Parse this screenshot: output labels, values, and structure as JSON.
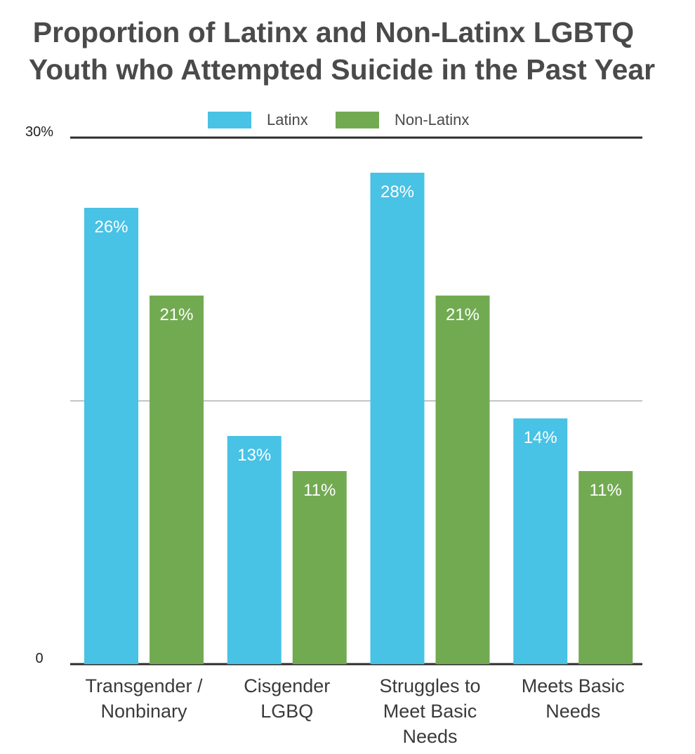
{
  "chart_data": {
    "type": "bar",
    "title_lines": [
      "Proportion of Latinx and Non-Latinx LGBTQ",
      "Youth who Attempted Suicide in the Past Year"
    ],
    "categories": [
      [
        "Transgender /",
        "Nonbinary"
      ],
      [
        "Cisgender",
        "LGBQ"
      ],
      [
        "Struggles to",
        "Meet Basic",
        "Needs"
      ],
      [
        "Meets Basic",
        "Needs"
      ]
    ],
    "series": [
      {
        "name": "Latinx",
        "color": "#48c2e5",
        "values": [
          26,
          13,
          28,
          14
        ],
        "labels": [
          "26%",
          "13%",
          "28%",
          "14%"
        ]
      },
      {
        "name": "Non-Latinx",
        "color": "#72aa52",
        "values": [
          21,
          11,
          21,
          11
        ],
        "labels": [
          "21%",
          "11%",
          "21%",
          "11%"
        ]
      }
    ],
    "ylim": [
      0,
      30
    ],
    "yticks": [
      {
        "value": 30,
        "label": "30%"
      },
      {
        "value": 15,
        "label": ""
      },
      {
        "value": 0,
        "label": "0"
      }
    ],
    "legend": "top-center",
    "grid": true
  }
}
